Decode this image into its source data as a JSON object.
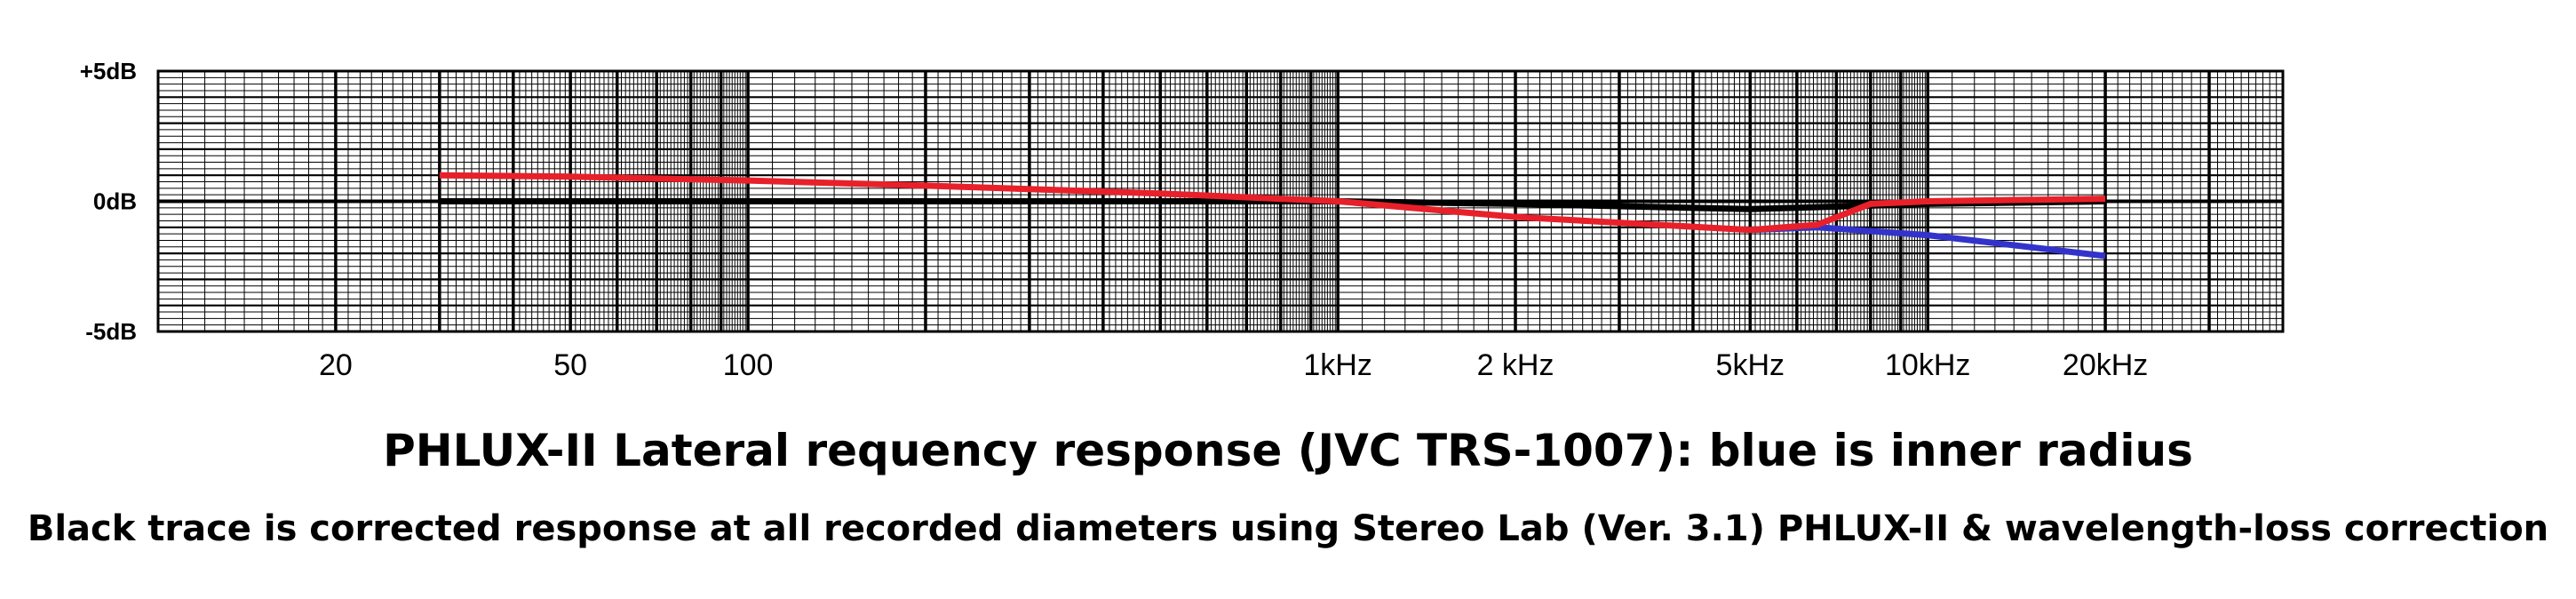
{
  "chart_data": {
    "type": "line",
    "title": "PHLUX-II Lateral requency response (JVC TRS-1007): blue is inner radius",
    "subtitle": "Black trace is corrected response at all recorded diameters using Stereo Lab (Ver. 3.1) PHLUX-II & wavelength-loss correction",
    "x_scale": "log",
    "xlim": [
      10,
      40000
    ],
    "ylim": [
      -5,
      5
    ],
    "y_ticks": [
      {
        "value": 5,
        "label": "+5dB"
      },
      {
        "value": 0,
        "label": "0dB"
      },
      {
        "value": -5,
        "label": "-5dB"
      }
    ],
    "x_ticks": [
      {
        "value": 20,
        "label": "20"
      },
      {
        "value": 50,
        "label": "50"
      },
      {
        "value": 100,
        "label": "100"
      },
      {
        "value": 1000,
        "label": "1kHz"
      },
      {
        "value": 2000,
        "label": "2 kHz"
      },
      {
        "value": 5000,
        "label": "5kHz"
      },
      {
        "value": 10000,
        "label": "10kHz"
      },
      {
        "value": 20000,
        "label": "20kHz"
      }
    ],
    "grid": true,
    "series": [
      {
        "color": "#000000",
        "x": [
          30,
          100,
          300,
          1000,
          2000,
          5000,
          10000,
          20000
        ],
        "y": [
          0,
          0,
          0,
          0,
          -0.1,
          -0.3,
          -0.1,
          0
        ]
      },
      {
        "color": "#3333cc",
        "x": [
          5000,
          6500,
          10000,
          20000
        ],
        "y": [
          -1.1,
          -1.0,
          -1.3,
          -2.1
        ]
      },
      {
        "color": "#e8202a",
        "x": [
          30,
          50,
          100,
          200,
          500,
          1000,
          2000,
          5000,
          6500,
          8000,
          10000,
          20000
        ],
        "y": [
          1.0,
          0.95,
          0.8,
          0.6,
          0.3,
          0.0,
          -0.6,
          -1.1,
          -0.9,
          -0.1,
          0.0,
          0.1
        ]
      }
    ]
  }
}
